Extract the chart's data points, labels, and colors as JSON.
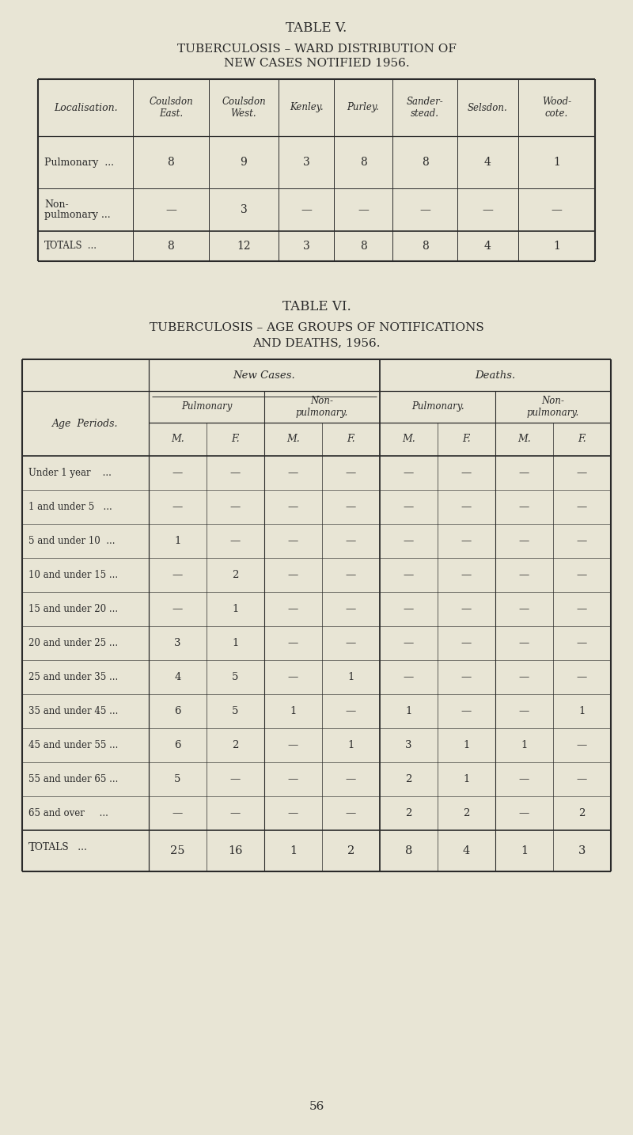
{
  "bg_color": "#e8e5d5",
  "page_number": "56",
  "t5_title1": "TABLE V.",
  "t5_title2": "TUBERCULOSIS – WARD DISTRIBUTION OF",
  "t5_title3": "NEW CASES NOTIFIED 1956.",
  "t5_headers": [
    "Localisation.",
    "Coulsdon\nEast.",
    "Coulsdon\nWest.",
    "Kenley.",
    "Purley.",
    "Sander-\nstead.",
    "Selsdon.",
    "Wood-\ncote."
  ],
  "t5_row0_label": "Pulmonary  ...",
  "t5_row0_vals": [
    "8",
    "9",
    "3",
    "8",
    "8",
    "4",
    "1"
  ],
  "t5_row1_line1": "Non-",
  "t5_row1_line2": "pulmonary ...",
  "t5_row1_vals": [
    "—",
    "3",
    "—",
    "—",
    "—",
    "—",
    "—"
  ],
  "t5_totals_vals": [
    "8",
    "12",
    "3",
    "8",
    "8",
    "4",
    "1"
  ],
  "t6_title1": "TABLE VI.",
  "t6_title2": "TUBERCULOSIS – AGE GROUPS OF NOTIFICATIONS",
  "t6_title3": "AND DEATHS, 1956.",
  "t6_new_cases": "New Cases.",
  "t6_deaths": "Deaths.",
  "t6_pulmonary": "Pulmonary",
  "t6_non_pulmonary": "Non-\npulmonary.",
  "t6_pulmonary_d": "Pulmonary.",
  "t6_non_pulmonary_d": "Non-\npulmonary.",
  "t6_mf": [
    "M.",
    "F.",
    "M.",
    "F.",
    "M.",
    "F.",
    "M.",
    "F."
  ],
  "t6_age_periods": [
    "Under 1 year    ...",
    "1 and under 5   ...",
    "5 and under 10  ...",
    "10 and under 15 ...",
    "15 and under 20 ...",
    "20 and under 25 ...",
    "25 and under 35 ...",
    "35 and under 45 ...",
    "45 and under 55 ...",
    "55 and under 65 ...",
    "65 and over     ..."
  ],
  "t6_data": [
    [
      "—",
      "—",
      "—",
      "—",
      "—",
      "—",
      "—",
      "—"
    ],
    [
      "—",
      "—",
      "—",
      "—",
      "—",
      "—",
      "—",
      "—"
    ],
    [
      "1",
      "—",
      "—",
      "—",
      "—",
      "—",
      "—",
      "—"
    ],
    [
      "—",
      "2",
      "—",
      "—",
      "—",
      "—",
      "—",
      "—"
    ],
    [
      "—",
      "1",
      "—",
      "—",
      "—",
      "—",
      "—",
      "—"
    ],
    [
      "3",
      "1",
      "—",
      "—",
      "—",
      "—",
      "—",
      "—"
    ],
    [
      "4",
      "5",
      "—",
      "1",
      "—",
      "—",
      "—",
      "—"
    ],
    [
      "6",
      "5",
      "1",
      "—",
      "1",
      "—",
      "—",
      "1"
    ],
    [
      "6",
      "2",
      "—",
      "1",
      "3",
      "1",
      "1",
      "—"
    ],
    [
      "5",
      "—",
      "—",
      "—",
      "2",
      "1",
      "—",
      "—"
    ],
    [
      "—",
      "—",
      "—",
      "—",
      "2",
      "2",
      "—",
      "2"
    ]
  ],
  "t6_totals": [
    "25",
    "16",
    "1",
    "2",
    "8",
    "4",
    "1",
    "3"
  ]
}
